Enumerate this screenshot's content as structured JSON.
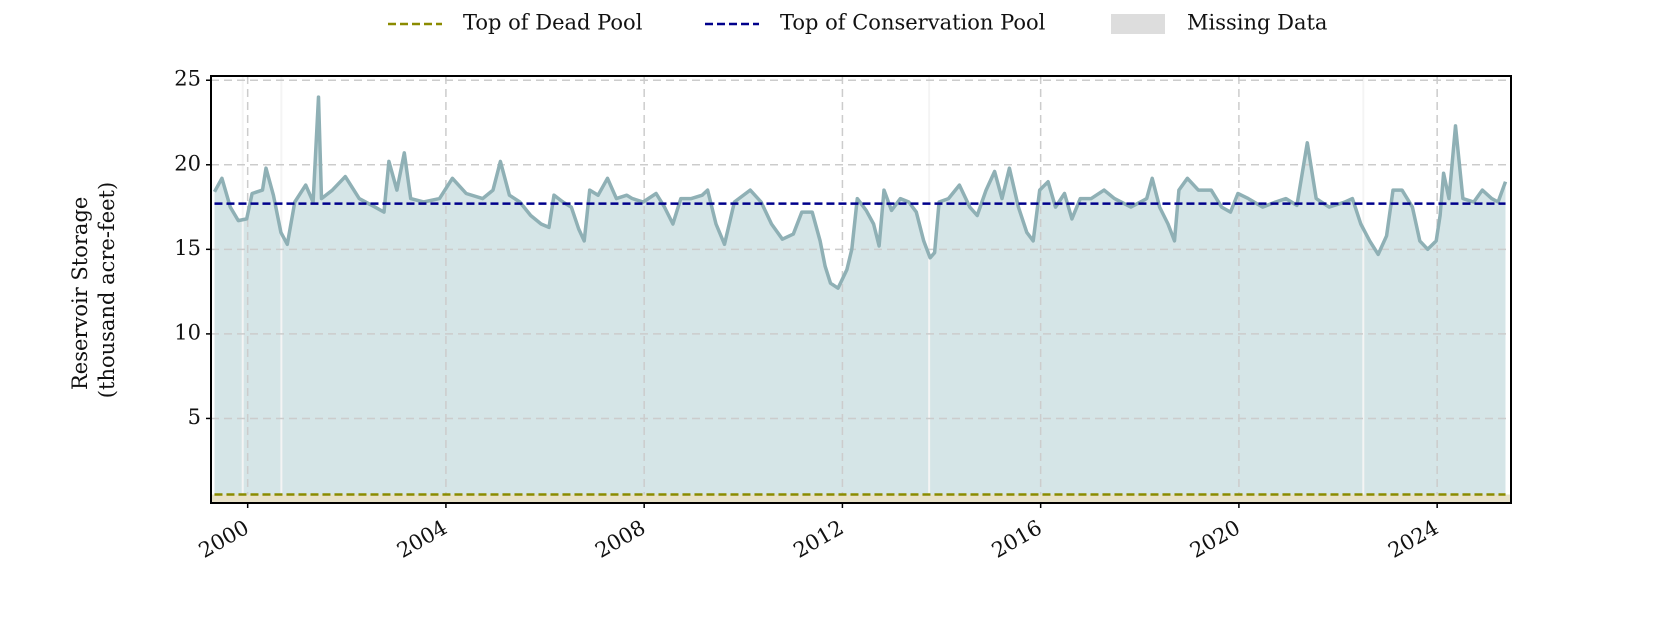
{
  "chart_data": {
    "type": "line",
    "y_label": [
      "Reservoir Storage",
      "(thousand acre-feet)"
    ],
    "color": "#8fb0b5",
    "fill_color": "#d5e5e7",
    "x": [
      1999.33,
      1999.48,
      1999.65,
      1999.81,
      1999.98,
      2000.09,
      2000.3,
      2000.37,
      2000.52,
      2000.67,
      2000.8,
      2000.95,
      2001.17,
      2001.32,
      2001.43,
      2001.49,
      2001.71,
      2001.97,
      2002.25,
      2002.57,
      2002.75,
      2002.85,
      2003.01,
      2003.16,
      2003.29,
      2003.55,
      2003.87,
      2004.13,
      2004.41,
      2004.74,
      2004.95,
      2005.1,
      2005.28,
      2005.49,
      2005.71,
      2005.92,
      2006.08,
      2006.18,
      2006.36,
      2006.53,
      2006.68,
      2006.79,
      2006.9,
      2007.07,
      2007.26,
      2007.44,
      2007.65,
      2007.76,
      2007.98,
      2008.24,
      2008.41,
      2008.58,
      2008.74,
      2008.95,
      2009.17,
      2009.28,
      2009.45,
      2009.62,
      2009.82,
      2010.14,
      2010.36,
      2010.57,
      2010.79,
      2011.01,
      2011.18,
      2011.39,
      2011.55,
      2011.65,
      2011.76,
      2011.91,
      2012.09,
      2012.19,
      2012.3,
      2012.48,
      2012.63,
      2012.74,
      2012.84,
      2012.99,
      2013.17,
      2013.34,
      2013.49,
      2013.64,
      2013.77,
      2013.86,
      2013.95,
      2014.14,
      2014.36,
      2014.57,
      2014.72,
      2014.9,
      2015.07,
      2015.22,
      2015.37,
      2015.55,
      2015.72,
      2015.85,
      2015.98,
      2016.15,
      2016.3,
      2016.48,
      2016.63,
      2016.8,
      2017.02,
      2017.28,
      2017.49,
      2017.82,
      2018.14,
      2018.25,
      2018.4,
      2018.57,
      2018.7,
      2018.79,
      2018.96,
      2019.18,
      2019.44,
      2019.65,
      2019.83,
      2019.98,
      2020.19,
      2020.48,
      2020.74,
      2020.95,
      2021.17,
      2021.38,
      2021.56,
      2021.82,
      2022.14,
      2022.29,
      2022.46,
      2022.64,
      2022.81,
      2022.98,
      2023.11,
      2023.29,
      2023.5,
      2023.65,
      2023.81,
      2023.98,
      2024.06,
      2024.13,
      2024.24,
      2024.37,
      2024.52,
      2024.74,
      2024.91,
      2025.1,
      2025.23,
      2025.38
    ],
    "values": [
      18.4,
      19.2,
      17.5,
      16.7,
      16.8,
      18.3,
      18.5,
      19.8,
      18.2,
      16.0,
      15.3,
      17.8,
      18.8,
      17.8,
      24.0,
      18.0,
      18.5,
      19.3,
      18.0,
      17.5,
      17.2,
      20.2,
      18.5,
      20.7,
      18.0,
      17.8,
      18.0,
      19.2,
      18.3,
      18.0,
      18.5,
      20.2,
      18.2,
      17.8,
      17.0,
      16.5,
      16.3,
      18.2,
      17.8,
      17.5,
      16.2,
      15.5,
      18.5,
      18.2,
      19.2,
      18.0,
      18.2,
      18.0,
      17.8,
      18.3,
      17.5,
      16.5,
      18.0,
      18.0,
      18.2,
      18.5,
      16.5,
      15.3,
      17.8,
      18.5,
      17.8,
      16.5,
      15.6,
      15.9,
      17.2,
      17.2,
      15.5,
      14.0,
      13.0,
      12.7,
      13.8,
      15.0,
      18.0,
      17.3,
      16.5,
      15.2,
      18.5,
      17.3,
      18.0,
      17.8,
      17.2,
      15.5,
      14.5,
      14.8,
      17.8,
      18.0,
      18.8,
      17.5,
      17.0,
      18.5,
      19.6,
      18.0,
      19.8,
      17.5,
      16.0,
      15.5,
      18.5,
      19.0,
      17.5,
      18.3,
      16.8,
      18.0,
      18.0,
      18.5,
      18.0,
      17.5,
      18.0,
      19.2,
      17.5,
      16.5,
      15.5,
      18.5,
      19.2,
      18.5,
      18.5,
      17.5,
      17.2,
      18.3,
      18.0,
      17.5,
      17.8,
      18.0,
      17.6,
      21.3,
      18.0,
      17.5,
      17.8,
      18.0,
      16.5,
      15.5,
      14.7,
      15.8,
      18.5,
      18.5,
      17.5,
      15.5,
      15.0,
      15.5,
      17.0,
      19.5,
      18.0,
      22.3,
      18.0,
      17.8,
      18.5,
      18.0,
      17.8,
      19.0
    ],
    "xlim": [
      1999.26,
      2025.49
    ],
    "ylim": [
      0,
      25.25
    ],
    "xticks": [
      2000,
      2004,
      2008,
      2012,
      2016,
      2020,
      2024
    ],
    "yticks": [
      5,
      10,
      15,
      20,
      25
    ],
    "grid": true,
    "reference_lines": [
      {
        "name": "Top of Dead Pool",
        "value": 0.5,
        "color": "#8b8b00",
        "fill_color": "#e9e2c9"
      },
      {
        "name": "Top of Conservation Pool",
        "value": 17.7,
        "color": "#00008b"
      }
    ],
    "missing_data": {
      "name": "Missing Data",
      "color": "#dddddd",
      "spans": [
        [
          1999.88,
          1999.92
        ],
        [
          2000.66,
          2000.7
        ],
        [
          2013.73,
          2013.77
        ],
        [
          2022.49,
          2022.53
        ]
      ]
    }
  }
}
